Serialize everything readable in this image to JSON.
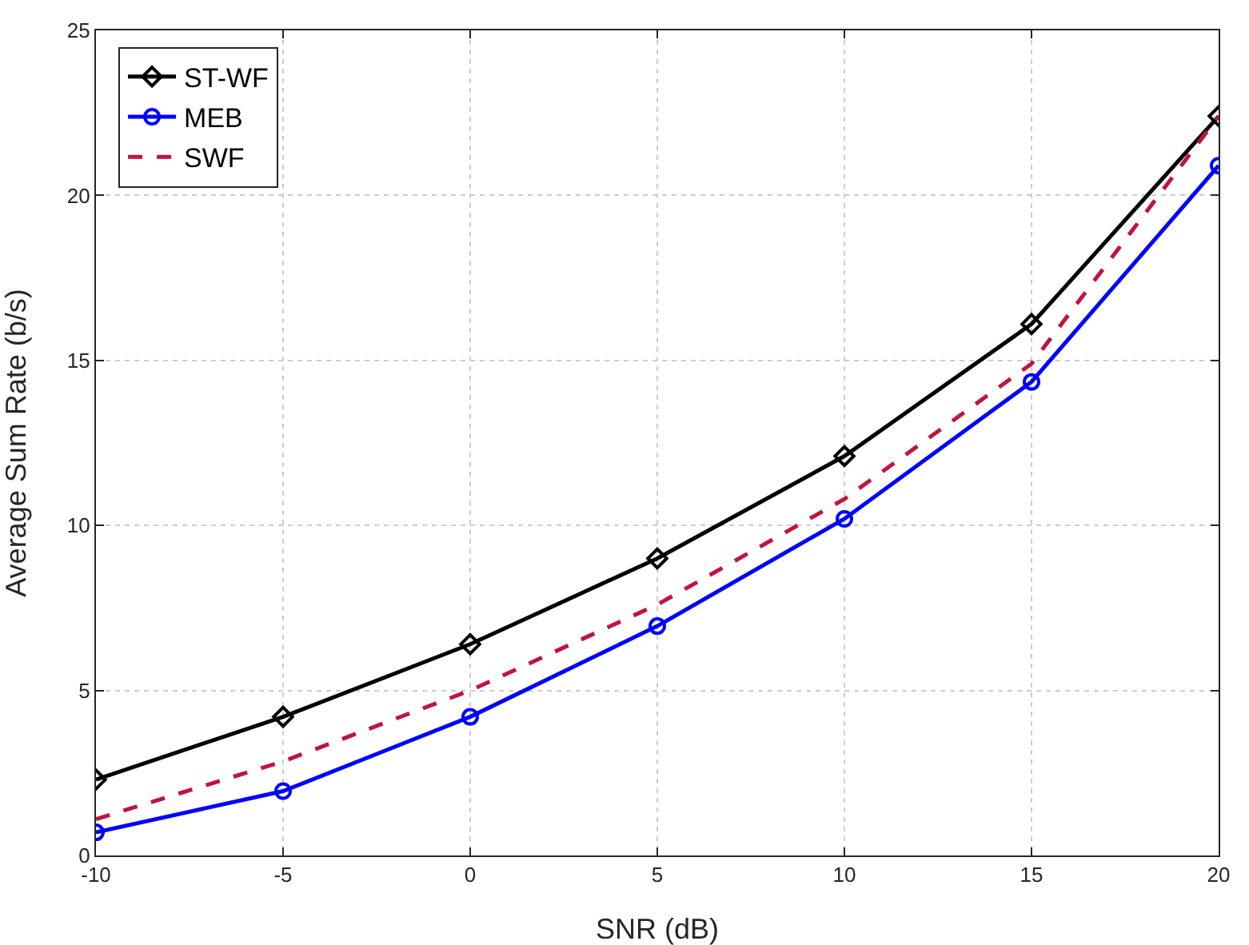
{
  "chart_data": {
    "type": "line",
    "xlabel": "SNR (dB)",
    "ylabel": "Average Sum Rate (b/s)",
    "x": [
      -10,
      -5,
      0,
      5,
      10,
      15,
      20
    ],
    "xlim": [
      -10,
      20
    ],
    "xticks": [
      -10,
      -5,
      0,
      5,
      10,
      15,
      20
    ],
    "ylim": [
      0,
      25
    ],
    "yticks": [
      0,
      5,
      10,
      15,
      20,
      25
    ],
    "grid": true,
    "legend": "top left",
    "series": [
      {
        "name": "ST-WF",
        "color": "#000000",
        "marker": "diamond",
        "line_style": "solid",
        "values": [
          2.3,
          4.2,
          6.4,
          9.0,
          12.1,
          16.1,
          22.4
        ]
      },
      {
        "name": "MEB",
        "color": "#0000ff",
        "marker": "circle",
        "line_style": "solid",
        "values": [
          0.7,
          1.95,
          4.2,
          6.95,
          10.2,
          14.35,
          20.9
        ]
      },
      {
        "name": "SWF",
        "color": "#c0143c",
        "marker": "none",
        "line_style": "dashed",
        "values": [
          1.1,
          2.85,
          5.0,
          7.6,
          10.8,
          14.9,
          22.4
        ]
      }
    ]
  }
}
